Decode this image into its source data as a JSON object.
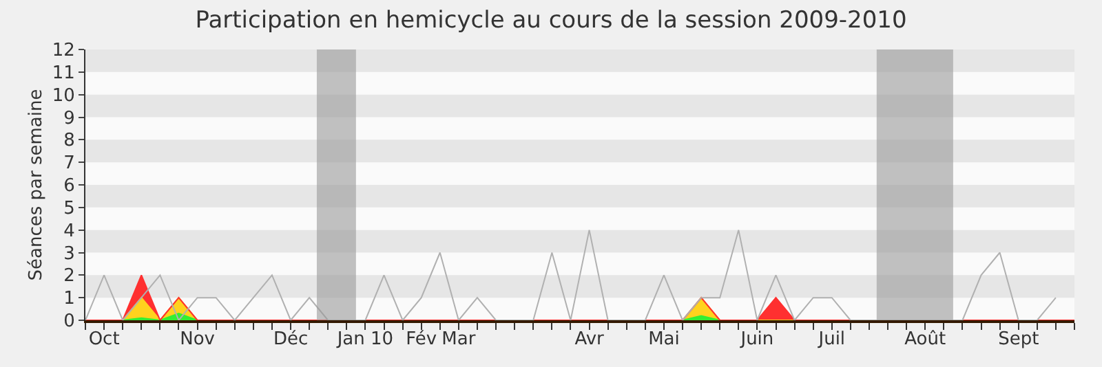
{
  "chart_data": {
    "type": "area",
    "title": "Participation en hemicycle au cours de la session 2009-2010",
    "ylabel": "Séances par semaine",
    "categories": [
      null,
      "Oct",
      null,
      null,
      null,
      null,
      "Nov",
      null,
      null,
      null,
      null,
      "Déc",
      null,
      null,
      null,
      "Jan 10",
      null,
      null,
      "Fév",
      null,
      "Mar",
      null,
      null,
      null,
      null,
      null,
      null,
      "Avr",
      null,
      null,
      null,
      "Mai",
      null,
      null,
      null,
      null,
      "Juin",
      null,
      null,
      null,
      "Juil",
      null,
      null,
      null,
      null,
      "Août",
      null,
      null,
      null,
      null,
      "Sept",
      null,
      null,
      null
    ],
    "stacked": true,
    "series": [
      {
        "color": "#33ee33",
        "values": [
          0,
          0,
          0,
          0.1,
          0,
          0.3,
          0,
          0,
          0,
          0,
          0,
          0,
          0,
          0,
          0,
          0,
          0,
          0,
          0,
          0,
          0,
          0,
          0,
          0,
          0,
          0,
          0,
          0,
          0,
          0,
          0,
          0,
          0,
          0.2,
          0,
          0,
          0,
          0,
          0,
          0,
          0,
          0,
          0,
          0,
          0,
          0,
          0,
          0,
          0,
          0,
          0,
          0,
          0,
          0
        ]
      },
      {
        "color": "#ffd21e",
        "values": [
          0,
          0,
          0,
          0.9,
          0,
          0.7,
          0,
          0,
          0,
          0,
          0,
          0,
          0,
          0,
          0,
          0,
          0,
          0,
          0,
          0,
          0,
          0,
          0,
          0,
          0,
          0,
          0,
          0,
          0,
          0,
          0,
          0,
          0,
          0.8,
          0,
          0,
          0,
          0,
          0,
          0,
          0,
          0,
          0,
          0,
          0,
          0,
          0,
          0,
          0,
          0,
          0,
          0,
          0,
          0
        ]
      },
      {
        "color": "#ff3030",
        "values": [
          0,
          0,
          0,
          1,
          0,
          0,
          0,
          0,
          0,
          0,
          0,
          0,
          0,
          0,
          0,
          0,
          0,
          0,
          0,
          0,
          0,
          0,
          0,
          0,
          0,
          0,
          0,
          0,
          0,
          0,
          0,
          0,
          0,
          0,
          0,
          0,
          0,
          1,
          0,
          0,
          0,
          0,
          0,
          0,
          0,
          0,
          0,
          0,
          0,
          0,
          0,
          0,
          0,
          0
        ]
      },
      {
        "type": "line",
        "color": "#b0b0b0",
        "values": [
          0,
          2,
          0,
          1,
          2,
          0,
          1,
          1,
          0,
          1,
          2,
          0,
          1,
          0,
          0,
          0,
          2,
          0,
          1,
          3,
          0,
          1,
          0,
          0,
          0,
          3,
          0,
          4,
          0,
          0,
          0,
          2,
          0,
          1,
          1,
          4,
          0,
          2,
          0,
          1,
          1,
          0,
          0,
          0,
          0,
          0,
          0,
          0,
          2,
          3,
          0,
          0,
          1,
          null
        ]
      }
    ],
    "ylim": [
      0,
      12
    ],
    "yticks": [
      0,
      1,
      2,
      3,
      4,
      5,
      6,
      7,
      8,
      9,
      10,
      11,
      12
    ]
  }
}
